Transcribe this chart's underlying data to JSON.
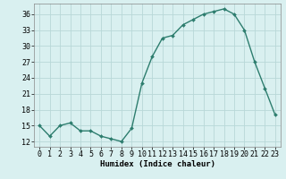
{
  "x": [
    0,
    1,
    2,
    3,
    4,
    5,
    6,
    7,
    8,
    9,
    10,
    11,
    12,
    13,
    14,
    15,
    16,
    17,
    18,
    19,
    20,
    21,
    22,
    23
  ],
  "y": [
    15,
    13,
    15,
    15.5,
    14,
    14,
    13,
    12.5,
    12,
    14.5,
    23,
    28,
    31.5,
    32,
    34,
    35,
    36,
    36.5,
    37,
    36,
    33,
    27,
    22,
    17
  ],
  "line_color": "#2d7d6e",
  "marker": "D",
  "marker_size": 2.0,
  "bg_color": "#d9f0f0",
  "grid_color": "#b8d8d8",
  "xlabel": "Humidex (Indice chaleur)",
  "xlim": [
    -0.5,
    23.5
  ],
  "ylim": [
    11,
    38
  ],
  "yticks": [
    12,
    15,
    18,
    21,
    24,
    27,
    30,
    33,
    36
  ],
  "xticks": [
    0,
    1,
    2,
    3,
    4,
    5,
    6,
    7,
    8,
    9,
    10,
    11,
    12,
    13,
    14,
    15,
    16,
    17,
    18,
    19,
    20,
    21,
    22,
    23
  ],
  "xlabel_fontsize": 6.5,
  "tick_fontsize": 6,
  "line_width": 1.0
}
